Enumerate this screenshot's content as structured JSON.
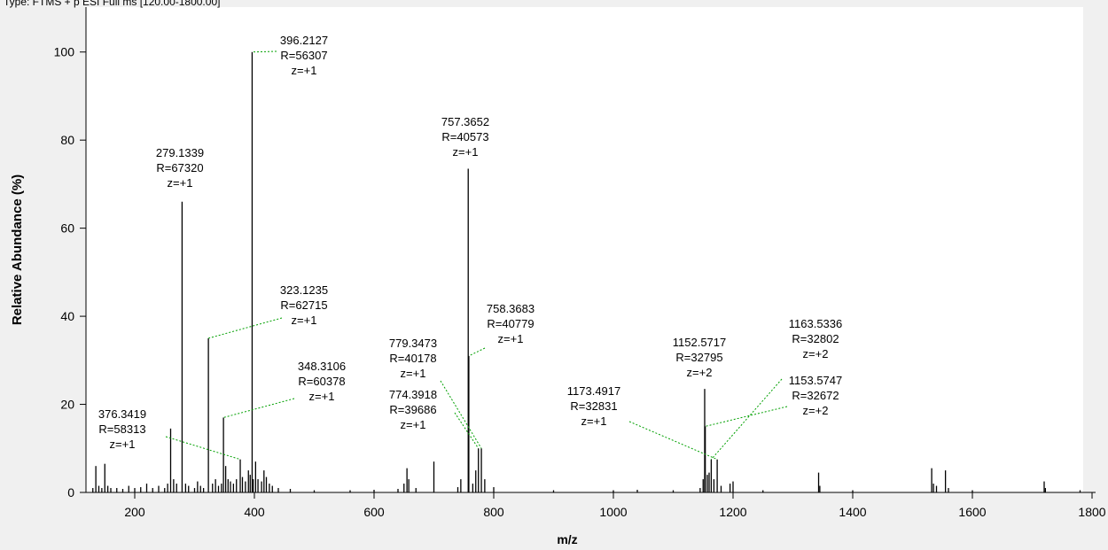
{
  "chart_data": {
    "type": "stick",
    "header": "Type: FTMS + p ESI Full ms [120.00-1800.00]",
    "xlabel": "m/z",
    "ylabel": "Relative Abundance (%)",
    "color": "#000000",
    "annotation_color": "#00a000",
    "xlim": [
      120,
      1800
    ],
    "ylim": [
      0,
      110
    ],
    "xticks": [
      200,
      400,
      600,
      800,
      1000,
      1200,
      1400,
      1600,
      1800
    ],
    "yticks": [
      0,
      20,
      40,
      60,
      80,
      100
    ],
    "x": [
      130,
      135,
      140,
      145,
      150,
      155,
      160,
      170,
      180,
      190,
      200,
      210,
      220,
      230,
      240,
      250,
      255,
      260,
      265,
      270,
      279.1339,
      285,
      290,
      300,
      305,
      310,
      315,
      323.1235,
      330,
      335,
      340,
      345,
      348.3106,
      352,
      356,
      360,
      365,
      370,
      376.3419,
      380,
      385,
      390,
      393,
      396.2127,
      398,
      402,
      406,
      412,
      416,
      420,
      425,
      430,
      440,
      460,
      500,
      560,
      600,
      640,
      650,
      655,
      658,
      670,
      700,
      740,
      745,
      757.3652,
      758.3683,
      765,
      770,
      774.3918,
      779.3473,
      785,
      800,
      900,
      1000,
      1040,
      1100,
      1145,
      1150,
      1152.5717,
      1153.5747,
      1157,
      1160,
      1163.5336,
      1168,
      1173.4917,
      1180,
      1195,
      1200,
      1250,
      1343,
      1345,
      1400,
      1532,
      1535,
      1540,
      1555,
      1560,
      1600,
      1720,
      1722,
      1780
    ],
    "values": [
      1,
      6,
      1.5,
      1,
      6.5,
      1.5,
      1,
      1,
      0.8,
      1.5,
      1,
      1.2,
      2,
      1,
      1.5,
      1,
      2,
      14.5,
      3,
      2,
      66,
      2,
      1.5,
      1,
      2.5,
      1.5,
      1,
      35,
      2,
      3,
      1.5,
      2,
      17,
      6,
      3,
      2.5,
      2,
      3,
      7.5,
      3.5,
      2.5,
      5,
      4,
      100,
      3,
      7,
      3,
      2.5,
      5,
      3.5,
      2,
      1.5,
      1,
      0.8,
      0.5,
      0.5,
      0.6,
      0.8,
      2,
      5.5,
      3,
      1,
      7,
      1.2,
      3,
      73.5,
      31,
      2,
      5,
      10,
      10,
      3,
      1.2,
      0.5,
      0.5,
      0.6,
      0.5,
      1,
      3,
      23.5,
      15,
      4,
      4.5,
      7.5,
      3,
      7.5,
      1.5,
      2,
      2.5,
      0.5,
      4.5,
      1.5,
      0.5,
      5.5,
      2,
      1.5,
      5,
      1,
      0.5,
      2.5,
      1,
      0.5
    ],
    "annotations": [
      {
        "lines": [
          "396.2127",
          "R=56307",
          "z=+1"
        ]
      },
      {
        "lines": [
          "279.1339",
          "R=67320",
          "z=+1"
        ]
      },
      {
        "lines": [
          "757.3652",
          "R=40573",
          "z=+1"
        ]
      },
      {
        "lines": [
          "323.1235",
          "R=62715",
          "z=+1"
        ]
      },
      {
        "lines": [
          "348.3106",
          "R=60378",
          "z=+1"
        ]
      },
      {
        "lines": [
          "376.3419",
          "R=58313",
          "z=+1"
        ]
      },
      {
        "lines": [
          "758.3683",
          "R=40779",
          "z=+1"
        ]
      },
      {
        "lines": [
          "779.3473",
          "R=40178",
          "z=+1"
        ]
      },
      {
        "lines": [
          "774.3918",
          "R=39686",
          "z=+1"
        ]
      },
      {
        "lines": [
          "1152.5717",
          "R=32795",
          "z=+2"
        ]
      },
      {
        "lines": [
          "1163.5336",
          "R=32802",
          "z=+2"
        ]
      },
      {
        "lines": [
          "1153.5747",
          "R=32672",
          "z=+2"
        ]
      },
      {
        "lines": [
          "1173.4917",
          "R=32831",
          "z=+1"
        ]
      }
    ]
  }
}
